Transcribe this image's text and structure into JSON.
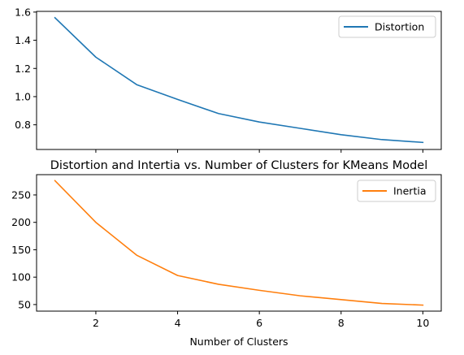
{
  "chart_data": [
    {
      "type": "line",
      "title": "",
      "xlabel": "",
      "ylabel": "",
      "x": [
        1,
        2,
        3,
        4,
        5,
        6,
        7,
        8,
        9,
        10
      ],
      "xlim": [
        0.55,
        10.45
      ],
      "ylim": [
        0.625,
        1.605
      ],
      "xticks": [
        2,
        4,
        6,
        8,
        10
      ],
      "xtick_labels_visible": false,
      "yticks": [
        0.8,
        1.0,
        1.2,
        1.4,
        1.6
      ],
      "ytick_labels": [
        "0.8",
        "1.0",
        "1.2",
        "1.4",
        "1.6"
      ],
      "grid": false,
      "legend_position": "top-right",
      "series": [
        {
          "name": "Distortion",
          "color": "#1f77b4",
          "values": [
            1.56,
            1.28,
            1.085,
            0.98,
            0.88,
            0.82,
            0.775,
            0.73,
            0.695,
            0.675
          ]
        }
      ]
    },
    {
      "type": "line",
      "title": "Distortion and Intertia vs. Number of Clusters for KMeans Model",
      "xlabel": "Number of Clusters",
      "ylabel": "",
      "x": [
        1,
        2,
        3,
        4,
        5,
        6,
        7,
        8,
        9,
        10
      ],
      "xlim": [
        0.55,
        10.45
      ],
      "ylim": [
        38,
        287
      ],
      "xticks": [
        2,
        4,
        6,
        8,
        10
      ],
      "xtick_labels": [
        "2",
        "4",
        "6",
        "8",
        "10"
      ],
      "yticks": [
        50,
        100,
        150,
        200,
        250
      ],
      "ytick_labels": [
        "50",
        "100",
        "150",
        "200",
        "250"
      ],
      "grid": false,
      "legend_position": "top-right",
      "series": [
        {
          "name": "Inertia",
          "color": "#ff7f0e",
          "values": [
            276,
            200,
            140,
            103,
            87,
            76,
            66,
            59,
            52,
            49
          ]
        }
      ]
    }
  ]
}
